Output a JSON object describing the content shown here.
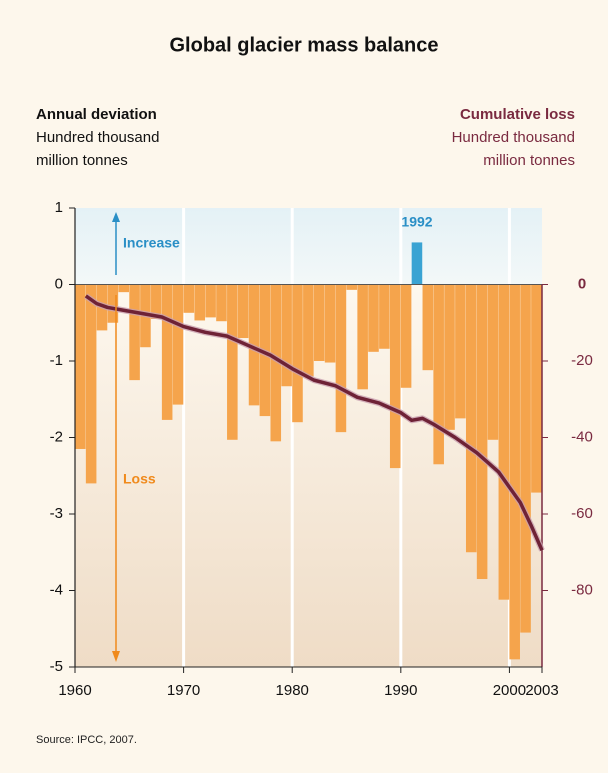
{
  "chart_data": {
    "type": "bar",
    "title": "Global glacier mass balance",
    "left_axis_title": "Annual deviation",
    "left_axis_subtitle": [
      "Hundred thousand",
      "million tonnes"
    ],
    "right_axis_title": "Cumulative loss",
    "right_axis_subtitle": [
      "Hundred thousand",
      "million tonnes"
    ],
    "annotations": {
      "increase": "Increase",
      "loss": "Loss",
      "peak": "1992"
    },
    "source": "Source: IPCC, 2007.",
    "x": [
      1961,
      1962,
      1963,
      1964,
      1965,
      1966,
      1967,
      1968,
      1969,
      1970,
      1971,
      1972,
      1973,
      1974,
      1975,
      1976,
      1977,
      1978,
      1979,
      1980,
      1981,
      1982,
      1983,
      1984,
      1985,
      1986,
      1987,
      1988,
      1989,
      1990,
      1991,
      1992,
      1993,
      1994,
      1995,
      1996,
      1997,
      1998,
      1999,
      2000,
      2001,
      2002,
      2003
    ],
    "values": [
      -2.15,
      -2.6,
      -0.6,
      -0.5,
      -0.1,
      -1.25,
      -0.82,
      -0.45,
      -1.77,
      -1.57,
      -0.37,
      -0.47,
      -0.43,
      -0.48,
      -2.03,
      -0.7,
      -1.58,
      -1.72,
      -2.05,
      -1.33,
      -1.8,
      -1.2,
      -1.0,
      -1.02,
      -1.93,
      -0.07,
      -1.37,
      -0.88,
      -0.84,
      -2.4,
      -1.35,
      0.55,
      -1.12,
      -2.35,
      -1.9,
      -1.75,
      -3.5,
      -3.85,
      -2.03,
      -4.12,
      -4.9,
      -4.55,
      -2.72
    ],
    "color": "#f5a44c",
    "positive_color": "#3aa3d3",
    "xlim": [
      1960,
      2003
    ],
    "xticks": [
      1960,
      1970,
      1980,
      1990,
      2000,
      2003
    ],
    "ylim": [
      -5,
      1
    ],
    "yticks": [
      1,
      0,
      -1,
      -2,
      -3,
      -4,
      -5
    ],
    "y2lim": [
      -100,
      20
    ],
    "y2ticks": [
      0,
      -20,
      -40,
      -60,
      -80
    ],
    "line": {
      "axis": "y2",
      "color": "#6e2236",
      "x": [
        1961,
        1962,
        1963,
        1965,
        1968,
        1970,
        1972,
        1974,
        1976,
        1978,
        1980,
        1982,
        1984,
        1986,
        1988,
        1990,
        1991,
        1992,
        1993,
        1995,
        1997,
        1999,
        2000,
        2001,
        2002,
        2003
      ],
      "values": [
        -3,
        -5,
        -6,
        -7,
        -8.5,
        -11,
        -12.5,
        -13.5,
        -16,
        -18.5,
        -22,
        -25,
        -26.5,
        -29.5,
        -31,
        -33.5,
        -35.5,
        -35,
        -36.5,
        -40,
        -44,
        -49,
        -53,
        -57,
        -63,
        -69.5
      ]
    }
  }
}
